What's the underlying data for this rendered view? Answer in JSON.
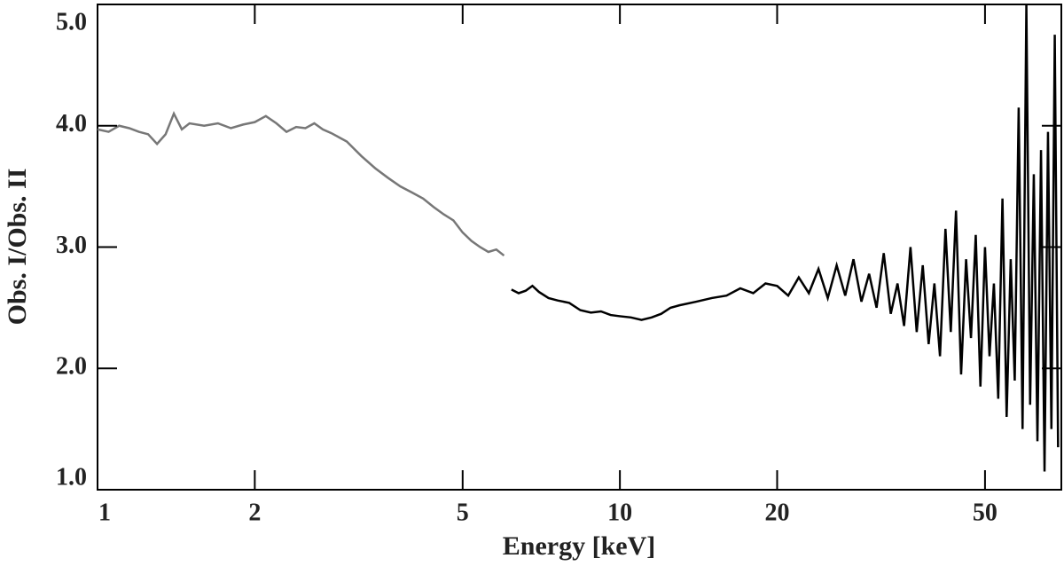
{
  "chart_data": {
    "type": "line",
    "xlabel": "Energy [keV]",
    "ylabel": "Obs. I/Obs. II",
    "xscale": "log",
    "xlim": [
      1,
      70
    ],
    "xticks": [
      1,
      2,
      5,
      10,
      20,
      50
    ],
    "ylim": [
      1,
      5
    ],
    "yticks": [
      {
        "value": 1,
        "label": "1.0"
      },
      {
        "value": 2,
        "label": "2.0"
      },
      {
        "value": 3,
        "label": "3.0"
      },
      {
        "value": 4,
        "label": "4.0"
      },
      {
        "value": 5,
        "label": "5.0"
      }
    ],
    "series": [
      {
        "color": "#777777",
        "x": [
          1.0,
          1.05,
          1.1,
          1.15,
          1.2,
          1.25,
          1.3,
          1.35,
          1.4,
          1.45,
          1.5,
          1.6,
          1.7,
          1.8,
          1.9,
          2.0,
          2.1,
          2.2,
          2.3,
          2.4,
          2.5,
          2.6,
          2.7,
          2.8,
          3.0,
          3.2,
          3.4,
          3.6,
          3.8,
          4.0,
          4.2,
          4.4,
          4.6,
          4.8,
          5.0,
          5.2,
          5.4,
          5.6,
          5.8,
          6.0
        ],
        "values": [
          3.97,
          3.95,
          4.0,
          3.98,
          3.95,
          3.93,
          3.85,
          3.93,
          4.1,
          3.97,
          4.02,
          4.0,
          4.02,
          3.98,
          4.01,
          4.03,
          4.08,
          4.02,
          3.95,
          3.99,
          3.98,
          4.02,
          3.97,
          3.94,
          3.87,
          3.75,
          3.65,
          3.57,
          3.5,
          3.45,
          3.4,
          3.33,
          3.27,
          3.22,
          3.12,
          3.05,
          3.0,
          2.96,
          2.98,
          2.93
        ]
      },
      {
        "color": "#000000",
        "x": [
          6.2,
          6.4,
          6.6,
          6.8,
          7.0,
          7.3,
          7.6,
          8.0,
          8.4,
          8.8,
          9.2,
          9.6,
          10,
          10.5,
          11,
          11.5,
          12,
          12.5,
          13,
          14,
          15,
          16,
          17,
          18,
          19,
          20,
          21,
          22,
          23,
          24,
          25,
          26,
          27,
          28,
          29,
          30,
          31,
          32,
          33,
          34,
          35,
          36,
          37,
          38,
          39,
          40,
          41,
          42,
          43,
          44,
          45,
          46,
          47,
          48,
          49,
          50,
          51,
          52,
          53,
          54,
          55,
          56,
          57,
          58,
          59,
          60,
          61,
          62,
          63,
          64,
          65,
          66,
          67,
          68,
          69
        ],
        "values": [
          2.65,
          2.62,
          2.64,
          2.68,
          2.63,
          2.58,
          2.56,
          2.54,
          2.48,
          2.46,
          2.47,
          2.44,
          2.43,
          2.42,
          2.4,
          2.42,
          2.45,
          2.5,
          2.52,
          2.55,
          2.58,
          2.6,
          2.66,
          2.62,
          2.7,
          2.68,
          2.6,
          2.75,
          2.62,
          2.82,
          2.58,
          2.85,
          2.6,
          2.9,
          2.55,
          2.78,
          2.5,
          2.95,
          2.45,
          2.7,
          2.35,
          3.0,
          2.3,
          2.85,
          2.2,
          2.7,
          2.1,
          3.15,
          2.3,
          3.3,
          1.95,
          2.9,
          2.25,
          3.1,
          1.85,
          3.0,
          2.1,
          2.7,
          1.75,
          3.4,
          1.6,
          2.9,
          1.9,
          4.15,
          1.5,
          5.0,
          1.7,
          3.6,
          1.4,
          3.8,
          1.15,
          3.95,
          1.5,
          4.75,
          1.35
        ]
      }
    ]
  }
}
